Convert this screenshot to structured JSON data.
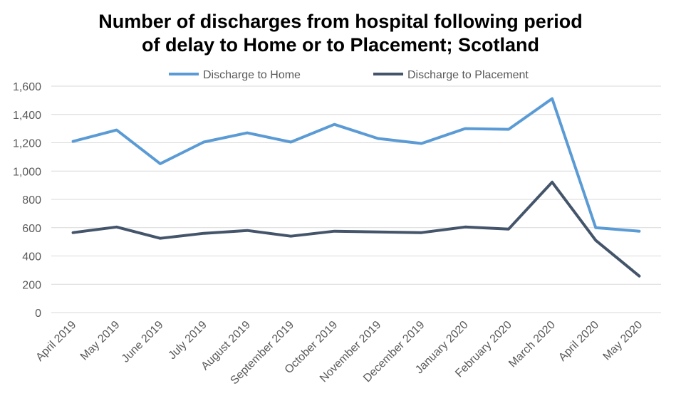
{
  "chart_data": {
    "type": "line",
    "title_lines": [
      "Number of discharges from hospital following period",
      "of delay to Home or to Placement; Scotland"
    ],
    "xlabel": "",
    "ylabel": "",
    "categories": [
      "April 2019",
      "May 2019",
      "June 2019",
      "July 2019",
      "August 2019",
      "September 2019",
      "October 2019",
      "November 2019",
      "December 2019",
      "January 2020",
      "February 2020",
      "March 2020",
      "April 2020",
      "May 2020"
    ],
    "series": [
      {
        "name": "Discharge to Home",
        "color": "#5B9BD5",
        "values": [
          1210,
          1290,
          1052,
          1205,
          1270,
          1205,
          1330,
          1230,
          1195,
          1300,
          1295,
          1512,
          600,
          575
        ]
      },
      {
        "name": "Discharge to Placement",
        "color": "#44546A",
        "values": [
          565,
          605,
          525,
          560,
          580,
          540,
          575,
          570,
          565,
          605,
          590,
          922,
          510,
          258
        ]
      }
    ],
    "y_ticks": [
      "0",
      "200",
      "400",
      "600",
      "800",
      "1,000",
      "1,200",
      "1,400",
      "1,600"
    ],
    "ylim": [
      0,
      1600
    ],
    "grid": true,
    "legend_position": "top"
  }
}
